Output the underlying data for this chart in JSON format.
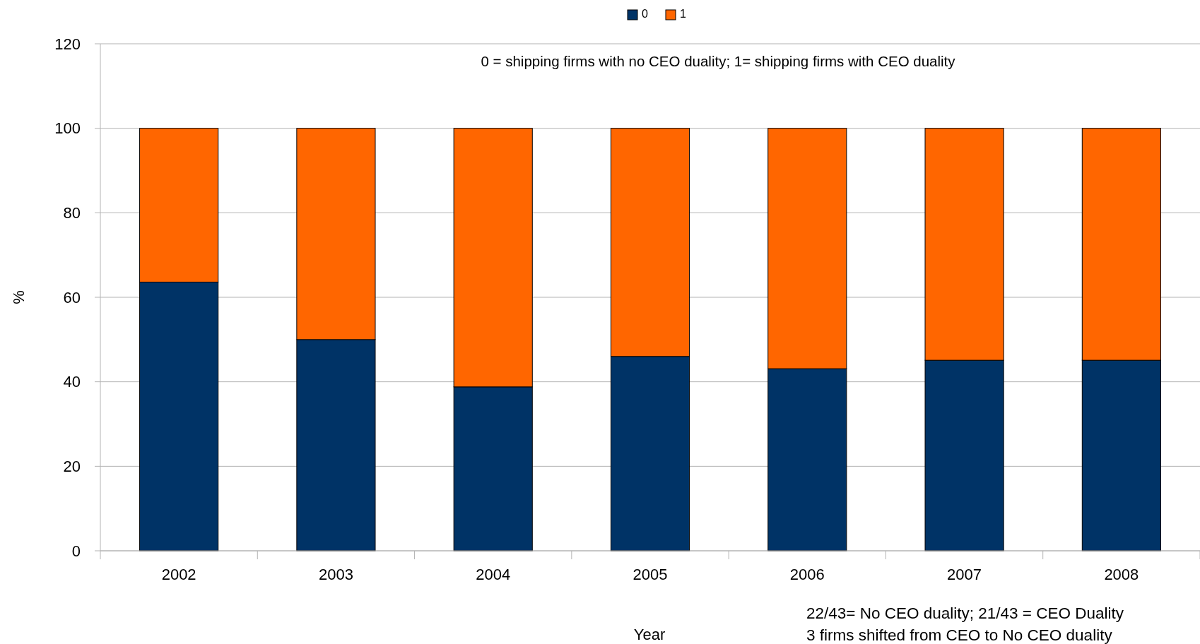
{
  "chart_data": {
    "type": "bar",
    "stacked": true,
    "categories": [
      "2002",
      "2003",
      "2004",
      "2005",
      "2006",
      "2007",
      "2008"
    ],
    "series": [
      {
        "name": "0",
        "color": "#003366",
        "values": [
          63.6,
          50,
          38.8,
          46,
          43.1,
          45.1,
          45.1
        ]
      },
      {
        "name": "1",
        "color": "#ff6600",
        "values": [
          36.4,
          50,
          61.2,
          54,
          56.9,
          54.9,
          54.9
        ]
      }
    ],
    "ylim": [
      0,
      120
    ],
    "yticks": [
      0,
      20,
      40,
      60,
      80,
      100,
      120
    ],
    "grid": "y",
    "legend": "top",
    "xlabel": "Year",
    "ylabel": "%",
    "annotations": [
      "0 = shipping firms with no CEO duality; 1= shipping firms with CEO duality",
      "22/43= No CEO duality; 21/43 = CEO Duality",
      "3 firms shifted from CEO to No CEO duality"
    ]
  }
}
